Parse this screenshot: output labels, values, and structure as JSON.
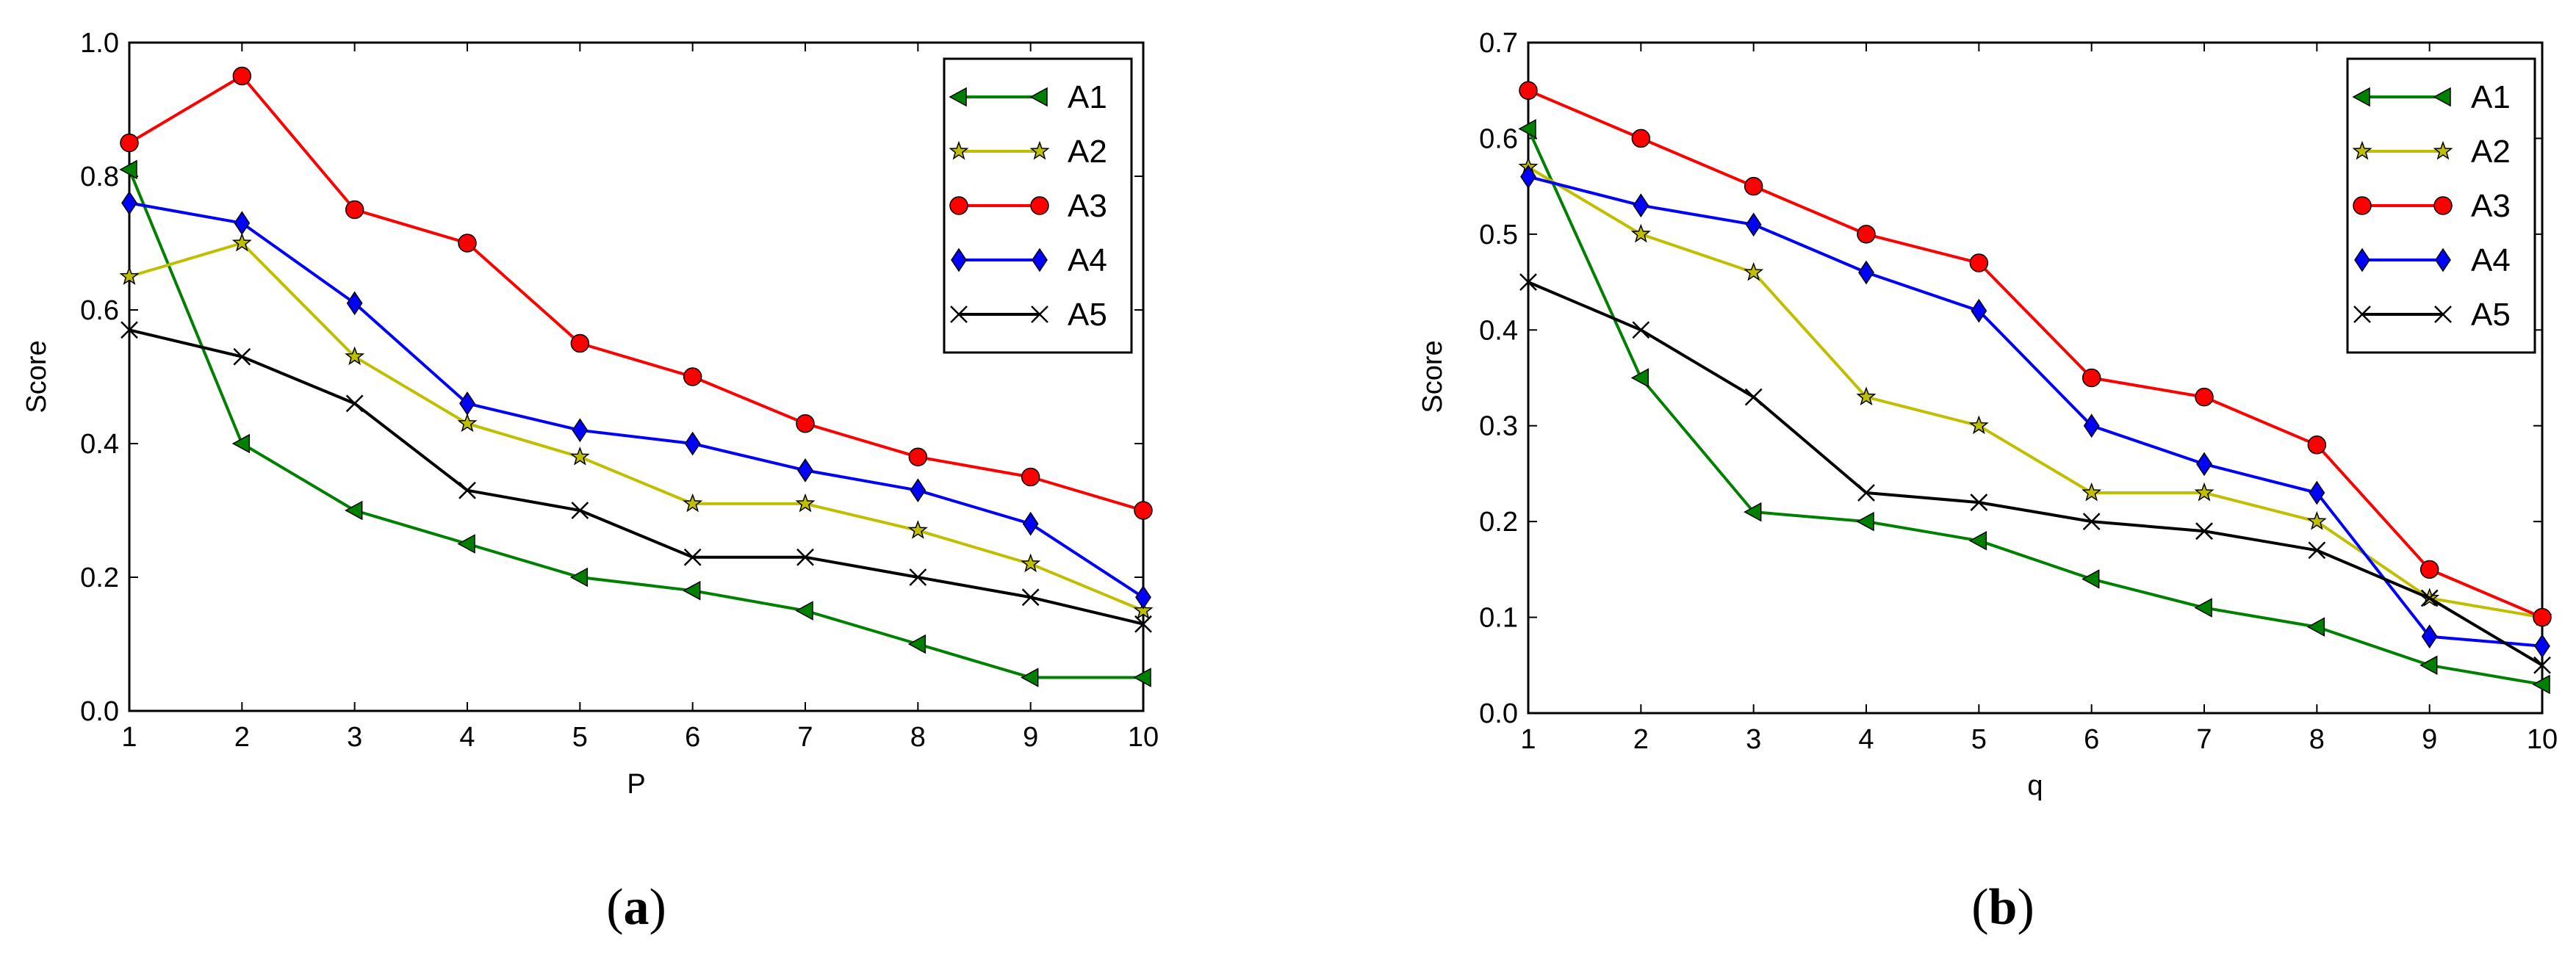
{
  "chart_data": [
    {
      "type": "line",
      "panel": "a",
      "caption": {
        "open": "(",
        "letter": "a",
        "close": ")"
      },
      "xlabel": "P",
      "ylabel": "Score",
      "xlim": [
        1,
        10
      ],
      "ylim": [
        0.0,
        1.0
      ],
      "xticks": [
        "1",
        "2",
        "3",
        "4",
        "5",
        "6",
        "7",
        "8",
        "9",
        "10"
      ],
      "yticks": [
        "0.0",
        "0.2",
        "0.4",
        "0.6",
        "0.8",
        "1.0"
      ],
      "ytick_values": [
        0.0,
        0.2,
        0.4,
        0.6,
        0.8,
        1.0
      ],
      "x": [
        1,
        2,
        3,
        4,
        5,
        6,
        7,
        8,
        9,
        10
      ],
      "legend_position": "top-right",
      "series": [
        {
          "name": "A1",
          "color": "#008000",
          "marker": "triangle-left",
          "values": [
            0.81,
            0.4,
            0.3,
            0.25,
            0.2,
            0.18,
            0.15,
            0.1,
            0.05,
            0.05
          ]
        },
        {
          "name": "A2",
          "color": "#bfbf00",
          "marker": "star",
          "values": [
            0.65,
            0.7,
            0.53,
            0.43,
            0.38,
            0.31,
            0.31,
            0.27,
            0.22,
            0.15
          ]
        },
        {
          "name": "A3",
          "color": "#ff0000",
          "marker": "circle",
          "values": [
            0.85,
            0.95,
            0.75,
            0.7,
            0.55,
            0.5,
            0.43,
            0.38,
            0.35,
            0.3
          ]
        },
        {
          "name": "A4",
          "color": "#0000ff",
          "marker": "diamond",
          "values": [
            0.76,
            0.73,
            0.61,
            0.46,
            0.42,
            0.4,
            0.36,
            0.33,
            0.28,
            0.17
          ]
        },
        {
          "name": "A5",
          "color": "#000000",
          "marker": "x",
          "values": [
            0.57,
            0.53,
            0.46,
            0.33,
            0.3,
            0.23,
            0.23,
            0.2,
            0.17,
            0.13
          ]
        }
      ]
    },
    {
      "type": "line",
      "panel": "b",
      "caption": {
        "open": "(",
        "letter": "b",
        "close": ")"
      },
      "xlabel": "q",
      "ylabel": "Score",
      "xlim": [
        1,
        10
      ],
      "ylim": [
        0.0,
        0.7
      ],
      "xticks": [
        "1",
        "2",
        "3",
        "4",
        "5",
        "6",
        "7",
        "8",
        "9",
        "10"
      ],
      "yticks": [
        "0.0",
        "0.1",
        "0.2",
        "0.3",
        "0.4",
        "0.5",
        "0.6",
        "0.7"
      ],
      "ytick_values": [
        0.0,
        0.1,
        0.2,
        0.3,
        0.4,
        0.5,
        0.6,
        0.7
      ],
      "x": [
        1,
        2,
        3,
        4,
        5,
        6,
        7,
        8,
        9,
        10
      ],
      "legend_position": "top-right",
      "series": [
        {
          "name": "A1",
          "color": "#008000",
          "marker": "triangle-left",
          "values": [
            0.61,
            0.35,
            0.21,
            0.2,
            0.18,
            0.14,
            0.11,
            0.09,
            0.05,
            0.03
          ]
        },
        {
          "name": "A2",
          "color": "#bfbf00",
          "marker": "star",
          "values": [
            0.57,
            0.5,
            0.46,
            0.33,
            0.3,
            0.23,
            0.23,
            0.2,
            0.12,
            0.1
          ]
        },
        {
          "name": "A3",
          "color": "#ff0000",
          "marker": "circle",
          "values": [
            0.65,
            0.6,
            0.55,
            0.5,
            0.47,
            0.35,
            0.33,
            0.28,
            0.15,
            0.1
          ]
        },
        {
          "name": "A4",
          "color": "#0000ff",
          "marker": "diamond",
          "values": [
            0.56,
            0.53,
            0.51,
            0.46,
            0.42,
            0.3,
            0.26,
            0.23,
            0.08,
            0.07
          ]
        },
        {
          "name": "A5",
          "color": "#000000",
          "marker": "x",
          "values": [
            0.45,
            0.4,
            0.33,
            0.23,
            0.22,
            0.2,
            0.19,
            0.17,
            0.12,
            0.05
          ]
        }
      ]
    }
  ]
}
